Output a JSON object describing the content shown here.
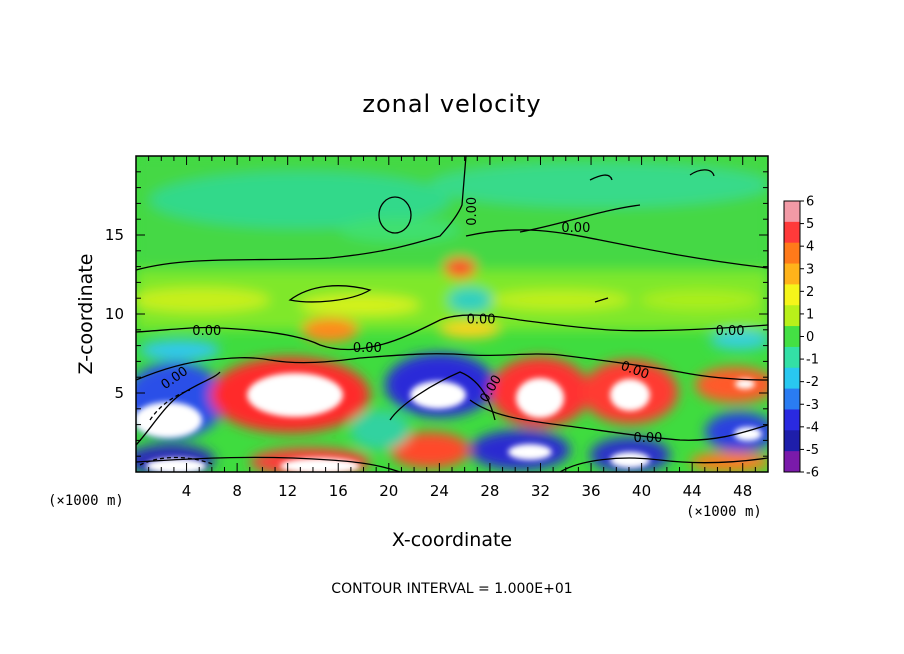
{
  "chart_data": {
    "type": "heatmap",
    "title": "zonal velocity",
    "xlabel": "X-coordinate",
    "ylabel": "Z-coordinate",
    "x_unit": "(×1000 m)",
    "z_unit": "(×1000 m)",
    "xlim": [
      0,
      50
    ],
    "ylim": [
      0,
      20
    ],
    "x_ticks": [
      4,
      8,
      12,
      16,
      20,
      24,
      28,
      32,
      36,
      40,
      44,
      48
    ],
    "y_ticks": [
      5,
      10,
      15
    ],
    "colorbar": {
      "min": -6,
      "max": 6,
      "ticks": [
        6,
        5,
        4,
        3,
        2,
        1,
        0,
        -1,
        -2,
        -3,
        -4,
        -5,
        -6
      ],
      "colors": [
        "#f29aa6",
        "#ff3a3a",
        "#ff7a1a",
        "#ffb31a",
        "#f5f51a",
        "#b8f01a",
        "#44e044",
        "#33e0a6",
        "#29c8f0",
        "#2a7cf2",
        "#2a2ae0",
        "#1e1eaa",
        "#7a1aaa"
      ]
    },
    "contour_labels": [
      {
        "text": "0.00",
        "x": 26.5,
        "z": 16.5,
        "rotate": -90
      },
      {
        "text": "0.00",
        "x": 34.8,
        "z": 15.5,
        "rotate": 0
      },
      {
        "text": "0.00",
        "x": 27.3,
        "z": 9.7,
        "rotate": 0
      },
      {
        "text": "0.00",
        "x": 5.6,
        "z": 9.0,
        "rotate": 0
      },
      {
        "text": "0.00",
        "x": 18.3,
        "z": 7.9,
        "rotate": 0
      },
      {
        "text": "0.00",
        "x": 3.0,
        "z": 6.0,
        "rotate": -35
      },
      {
        "text": "0.00",
        "x": 28.0,
        "z": 5.3,
        "rotate": -60
      },
      {
        "text": "0.00",
        "x": 39.5,
        "z": 6.5,
        "rotate": 20
      },
      {
        "text": "0.00",
        "x": 40.5,
        "z": 2.2,
        "rotate": 0
      },
      {
        "text": "0.00",
        "x": 47.0,
        "z": 9.0,
        "rotate": 0
      }
    ]
  },
  "footer": {
    "contour_interval": "CONTOUR INTERVAL = 1.000E+01"
  }
}
